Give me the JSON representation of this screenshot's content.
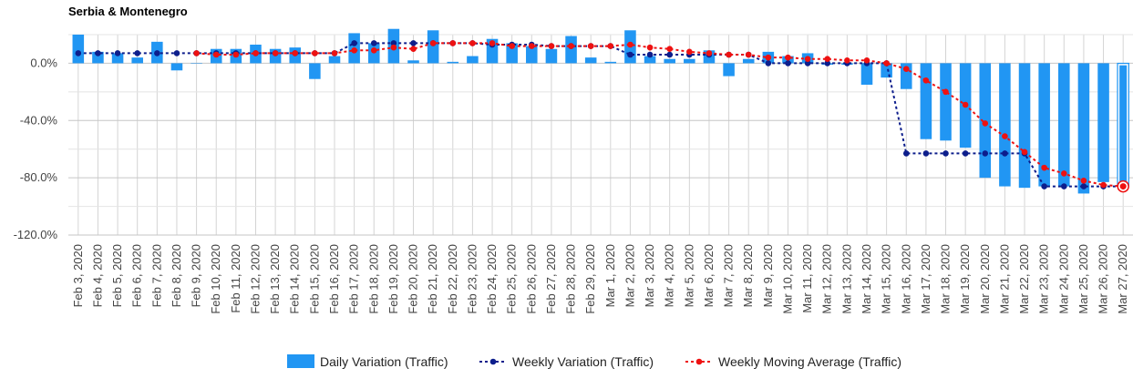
{
  "chart_data": {
    "type": "bar",
    "title": "Serbia & Montenegro",
    "categories": [
      "Feb 3, 2020",
      "Feb 4, 2020",
      "Feb 5, 2020",
      "Feb 6, 2020",
      "Feb 7, 2020",
      "Feb 8, 2020",
      "Feb 9, 2020",
      "Feb 10, 2020",
      "Feb 11, 2020",
      "Feb 12, 2020",
      "Feb 13, 2020",
      "Feb 14, 2020",
      "Feb 15, 2020",
      "Feb 16, 2020",
      "Feb 17, 2020",
      "Feb 18, 2020",
      "Feb 19, 2020",
      "Feb 20, 2020",
      "Feb 21, 2020",
      "Feb 22, 2020",
      "Feb 23, 2020",
      "Feb 24, 2020",
      "Feb 25, 2020",
      "Feb 26, 2020",
      "Feb 27, 2020",
      "Feb 28, 2020",
      "Feb 29, 2020",
      "Mar 1, 2020",
      "Mar 2, 2020",
      "Mar 3, 2020",
      "Mar 4, 2020",
      "Mar 5, 2020",
      "Mar 6, 2020",
      "Mar 7, 2020",
      "Mar 8, 2020",
      "Mar 9, 2020",
      "Mar 10, 2020",
      "Mar 11, 2020",
      "Mar 12, 2020",
      "Mar 13, 2020",
      "Mar 14, 2020",
      "Mar 15, 2020",
      "Mar 16, 2020",
      "Mar 17, 2020",
      "Mar 18, 2020",
      "Mar 19, 2020",
      "Mar 20, 2020",
      "Mar 21, 2020",
      "Mar 22, 2020",
      "Mar 23, 2020",
      "Mar 24, 2020",
      "Mar 25, 2020",
      "Mar 26, 2020",
      "Mar 27, 2020"
    ],
    "series": [
      {
        "name": "Daily Variation (Traffic)",
        "style": "bar",
        "color": "#2196f3",
        "values": [
          20,
          8,
          7,
          4,
          15,
          -5,
          0,
          10,
          10,
          13,
          10,
          11,
          -11,
          5,
          21,
          14,
          24,
          2,
          23,
          1,
          5,
          17,
          14,
          12,
          10,
          19,
          4,
          1,
          23,
          5,
          3,
          3,
          9,
          -9,
          3,
          8,
          5,
          7,
          -1,
          -1,
          -15,
          -10,
          -18,
          -53,
          -54,
          -59,
          -80,
          -86,
          -87,
          -86,
          -86,
          -91,
          -83,
          -86
        ]
      },
      {
        "name": "Weekly Variation (Traffic)",
        "style": "dashed-line",
        "color": "#0d1e8c",
        "values": [
          7,
          7,
          7,
          7,
          7,
          7,
          7,
          7,
          7,
          7,
          7,
          7,
          7,
          7,
          14,
          14,
          14,
          14,
          14,
          14,
          14,
          13,
          13,
          13,
          12,
          12,
          12,
          12,
          6,
          6,
          6,
          6,
          6,
          6,
          6,
          0,
          0,
          0,
          0,
          0,
          0,
          0,
          -63,
          -63,
          -63,
          -63,
          -63,
          -63,
          -63,
          -86,
          -86,
          -86,
          -86,
          -86
        ]
      },
      {
        "name": "Weekly Moving Average (Traffic)",
        "style": "dashed-line",
        "color": "#ee1111",
        "values": [
          null,
          null,
          null,
          null,
          null,
          null,
          7,
          6,
          6,
          7,
          7,
          7,
          7,
          7,
          9,
          9,
          11,
          10,
          14,
          14,
          14,
          14,
          12,
          12,
          12,
          12,
          12,
          12,
          13,
          11,
          10,
          8,
          7,
          6,
          6,
          4,
          4,
          3,
          3,
          2,
          2,
          0,
          -4,
          -12,
          -20,
          -29,
          -42,
          -51,
          -62,
          -73,
          -77,
          -82,
          -85,
          -86
        ]
      }
    ],
    "ylim": [
      -120,
      20
    ],
    "yticks": [
      0,
      -40,
      -80,
      -120
    ],
    "ytick_labels": [
      "0.0%",
      "-40.0%",
      "-80.0%",
      "-120.0%"
    ],
    "xlabel": "",
    "ylabel": "",
    "legend": {
      "position": "bottom",
      "items": [
        "Daily Variation (Traffic)",
        "Weekly Variation (Traffic)",
        "Weekly Moving Average (Traffic)"
      ]
    },
    "grid": true
  }
}
